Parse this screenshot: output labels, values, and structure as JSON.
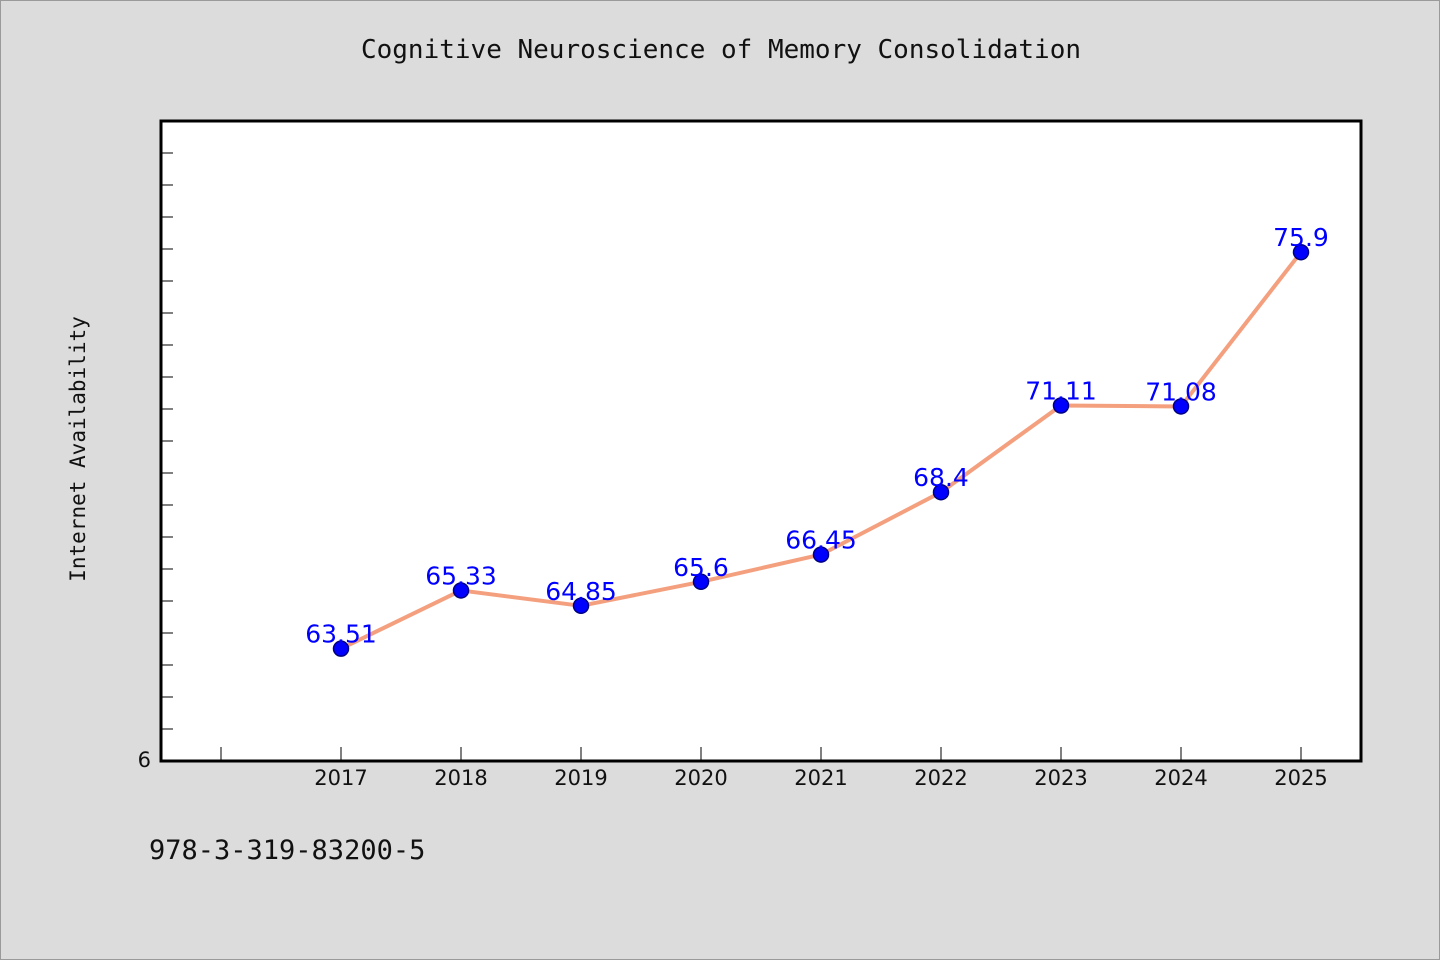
{
  "footer": {
    "isbn": "978-3-319-83200-5"
  },
  "chart_data": {
    "type": "line",
    "title": "Cognitive Neuroscience of Memory Consolidation",
    "xlabel": "",
    "ylabel": "Internet Availability",
    "categories": [
      "2017",
      "2018",
      "2019",
      "2020",
      "2021",
      "2022",
      "2023",
      "2024",
      "2025"
    ],
    "values": [
      63.51,
      65.33,
      64.85,
      65.6,
      66.45,
      68.4,
      71.11,
      71.08,
      75.9
    ],
    "data_labels": [
      "63.51",
      "65.33",
      "64.85",
      "65.6",
      "66.45",
      "68.4",
      "71.11",
      "71.08",
      "75.9"
    ],
    "y_tick_labels": [
      "6"
    ],
    "ylim": [
      60,
      80
    ],
    "grid": false,
    "legend": "none",
    "colors": {
      "line": "#f4a07f",
      "marker": "#0000ff",
      "marker_edge": "#000080",
      "data_label": "#0000ff",
      "plot_background": "#ffffff",
      "page_background": "#dcdcdc"
    }
  }
}
